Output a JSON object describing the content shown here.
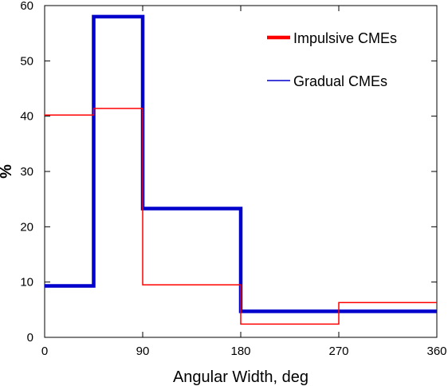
{
  "chart_data": {
    "type": "line",
    "step": true,
    "xlabel": "Angular Width, deg",
    "ylabel": "%",
    "xlim": [
      0,
      360
    ],
    "ylim": [
      0,
      60
    ],
    "xticks": [
      0,
      90,
      180,
      270,
      360
    ],
    "yticks": [
      0,
      10,
      20,
      30,
      40,
      50,
      60
    ],
    "x_tick_labels": [
      "0",
      "90",
      "180",
      "270",
      "360"
    ],
    "y_tick_labels": [
      "0",
      "10",
      "20",
      "30",
      "40",
      "50",
      "60"
    ],
    "grid": false,
    "legend_position": "top-right",
    "bin_edges": [
      0,
      45,
      90,
      180,
      270,
      360
    ],
    "series": [
      {
        "name": "Impulsive CMEs",
        "color": "#ff0000",
        "values": [
          40.2,
          41.4,
          9.5,
          2.4,
          6.3
        ]
      },
      {
        "name": "Gradual CMEs",
        "color": "#0000cc",
        "values": [
          9.3,
          58.0,
          23.3,
          4.7,
          4.7
        ]
      }
    ]
  }
}
